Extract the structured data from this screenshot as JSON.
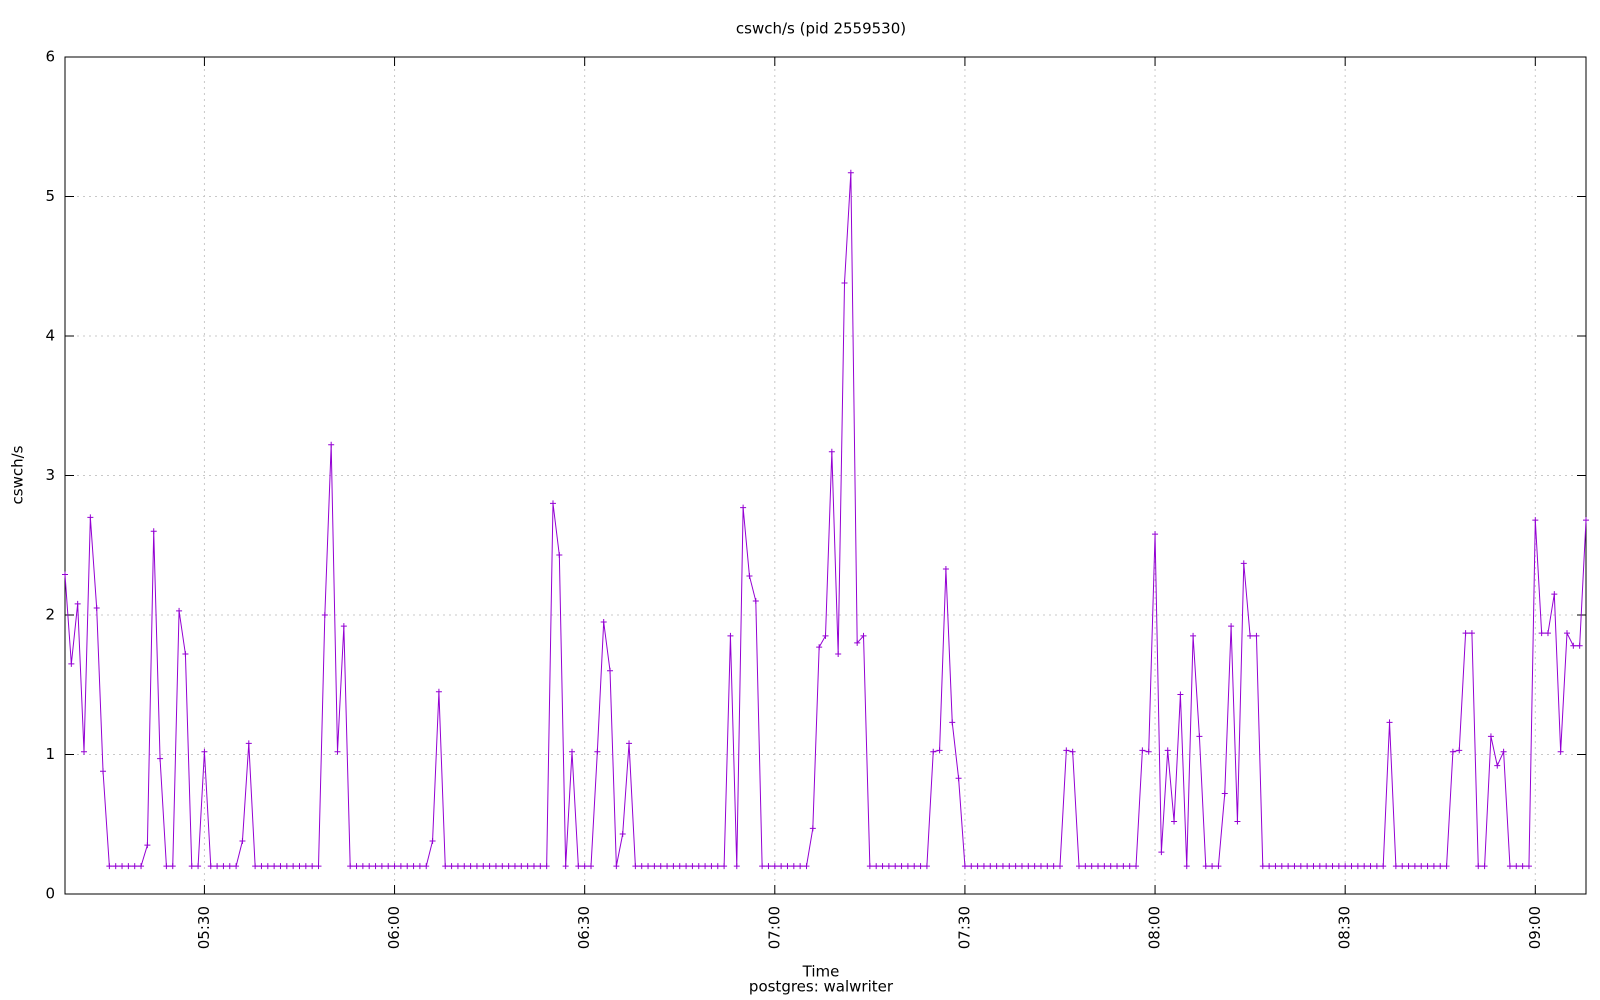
{
  "chart_data": {
    "type": "line",
    "title": "cswch/s (pid 2559530)",
    "x_label": "Time",
    "subtitle": "postgres: walwriter",
    "y_label": "cswch/s",
    "grid": true,
    "x": [
      "05:08",
      "05:09",
      "05:10",
      "05:11",
      "05:12",
      "05:13",
      "05:14",
      "05:15",
      "05:16",
      "05:17",
      "05:18",
      "05:19",
      "05:20",
      "05:21",
      "05:22",
      "05:23",
      "05:24",
      "05:25",
      "05:26",
      "05:27",
      "05:28",
      "05:29",
      "05:30",
      "05:31",
      "05:32",
      "05:33",
      "05:34",
      "05:35",
      "05:36",
      "05:37",
      "05:38",
      "05:39",
      "05:40",
      "05:41",
      "05:42",
      "05:43",
      "05:44",
      "05:45",
      "05:46",
      "05:47",
      "05:48",
      "05:49",
      "05:50",
      "05:51",
      "05:52",
      "05:53",
      "05:54",
      "05:55",
      "05:56",
      "05:57",
      "05:58",
      "05:59",
      "06:00",
      "06:01",
      "06:02",
      "06:03",
      "06:04",
      "06:05",
      "06:06",
      "06:07",
      "06:08",
      "06:09",
      "06:10",
      "06:11",
      "06:12",
      "06:13",
      "06:14",
      "06:15",
      "06:16",
      "06:17",
      "06:18",
      "06:19",
      "06:20",
      "06:21",
      "06:22",
      "06:23",
      "06:24",
      "06:25",
      "06:26",
      "06:27",
      "06:28",
      "06:29",
      "06:30",
      "06:31",
      "06:32",
      "06:33",
      "06:34",
      "06:35",
      "06:36",
      "06:37",
      "06:38",
      "06:39",
      "06:40",
      "06:41",
      "06:42",
      "06:43",
      "06:44",
      "06:45",
      "06:46",
      "06:47",
      "06:48",
      "06:49",
      "06:50",
      "06:51",
      "06:52",
      "06:53",
      "06:54",
      "06:55",
      "06:56",
      "06:57",
      "06:58",
      "06:59",
      "07:00",
      "07:01",
      "07:02",
      "07:03",
      "07:04",
      "07:05",
      "07:06",
      "07:07",
      "07:08",
      "07:09",
      "07:10",
      "07:11",
      "07:12",
      "07:13",
      "07:14",
      "07:15",
      "07:16",
      "07:17",
      "07:18",
      "07:19",
      "07:20",
      "07:21",
      "07:22",
      "07:23",
      "07:24",
      "07:25",
      "07:26",
      "07:27",
      "07:28",
      "07:29",
      "07:30",
      "07:31",
      "07:32",
      "07:33",
      "07:34",
      "07:35",
      "07:36",
      "07:37",
      "07:38",
      "07:39",
      "07:40",
      "07:41",
      "07:42",
      "07:43",
      "07:44",
      "07:45",
      "07:46",
      "07:47",
      "07:48",
      "07:49",
      "07:50",
      "07:51",
      "07:52",
      "07:53",
      "07:54",
      "07:55",
      "07:56",
      "07:57",
      "07:58",
      "07:59",
      "08:00",
      "08:01",
      "08:02",
      "08:03",
      "08:04",
      "08:05",
      "08:06",
      "08:07",
      "08:08",
      "08:09",
      "08:10",
      "08:11",
      "08:12",
      "08:13",
      "08:14",
      "08:15",
      "08:16",
      "08:17",
      "08:18",
      "08:19",
      "08:20",
      "08:21",
      "08:22",
      "08:23",
      "08:24",
      "08:25",
      "08:26",
      "08:27",
      "08:28",
      "08:29",
      "08:30",
      "08:31",
      "08:32",
      "08:33",
      "08:34",
      "08:35",
      "08:36",
      "08:37",
      "08:38",
      "08:39",
      "08:40",
      "08:41",
      "08:42",
      "08:43",
      "08:44",
      "08:45",
      "08:46",
      "08:47",
      "08:48",
      "08:49",
      "08:50",
      "08:51",
      "08:52",
      "08:53",
      "08:54",
      "08:55",
      "08:56",
      "08:57",
      "08:58",
      "08:59",
      "09:00",
      "09:01",
      "09:02",
      "09:03",
      "09:04",
      "09:05",
      "09:06",
      "09:07",
      "09:08"
    ],
    "series": [
      {
        "color": "#9400d3",
        "values": [
          2.29,
          1.65,
          2.08,
          1.02,
          2.7,
          2.05,
          0.88,
          0.2,
          0.2,
          0.2,
          0.2,
          0.2,
          0.2,
          0.35,
          2.6,
          0.97,
          0.2,
          0.2,
          2.03,
          1.72,
          0.2,
          0.2,
          1.02,
          0.2,
          0.2,
          0.2,
          0.2,
          0.2,
          0.38,
          1.08,
          0.2,
          0.2,
          0.2,
          0.2,
          0.2,
          0.2,
          0.2,
          0.2,
          0.2,
          0.2,
          0.2,
          2.0,
          3.22,
          1.02,
          1.92,
          0.2,
          0.2,
          0.2,
          0.2,
          0.2,
          0.2,
          0.2,
          0.2,
          0.2,
          0.2,
          0.2,
          0.2,
          0.2,
          0.38,
          1.45,
          0.2,
          0.2,
          0.2,
          0.2,
          0.2,
          0.2,
          0.2,
          0.2,
          0.2,
          0.2,
          0.2,
          0.2,
          0.2,
          0.2,
          0.2,
          0.2,
          0.2,
          2.8,
          2.43,
          0.2,
          1.02,
          0.2,
          0.2,
          0.2,
          1.02,
          1.95,
          1.6,
          0.2,
          0.43,
          1.08,
          0.2,
          0.2,
          0.2,
          0.2,
          0.2,
          0.2,
          0.2,
          0.2,
          0.2,
          0.2,
          0.2,
          0.2,
          0.2,
          0.2,
          0.2,
          1.85,
          0.2,
          2.77,
          2.28,
          2.1,
          0.2,
          0.2,
          0.2,
          0.2,
          0.2,
          0.2,
          0.2,
          0.2,
          0.47,
          1.77,
          1.85,
          3.17,
          1.72,
          4.38,
          5.17,
          1.8,
          1.85,
          0.2,
          0.2,
          0.2,
          0.2,
          0.2,
          0.2,
          0.2,
          0.2,
          0.2,
          0.2,
          1.02,
          1.03,
          2.33,
          1.23,
          0.83,
          0.2,
          0.2,
          0.2,
          0.2,
          0.2,
          0.2,
          0.2,
          0.2,
          0.2,
          0.2,
          0.2,
          0.2,
          0.2,
          0.2,
          0.2,
          0.2,
          1.03,
          1.02,
          0.2,
          0.2,
          0.2,
          0.2,
          0.2,
          0.2,
          0.2,
          0.2,
          0.2,
          0.2,
          1.03,
          1.02,
          2.58,
          0.3,
          1.03,
          0.52,
          1.43,
          0.2,
          1.85,
          1.13,
          0.2,
          0.2,
          0.2,
          0.72,
          1.92,
          0.52,
          2.37,
          1.85,
          1.85,
          0.2,
          0.2,
          0.2,
          0.2,
          0.2,
          0.2,
          0.2,
          0.2,
          0.2,
          0.2,
          0.2,
          0.2,
          0.2,
          0.2,
          0.2,
          0.2,
          0.2,
          0.2,
          0.2,
          0.2,
          1.23,
          0.2,
          0.2,
          0.2,
          0.2,
          0.2,
          0.2,
          0.2,
          0.2,
          0.2,
          1.02,
          1.03,
          1.87,
          1.87,
          0.2,
          0.2,
          1.13,
          0.92,
          1.02,
          0.2,
          0.2,
          0.2,
          0.2,
          2.68,
          1.87,
          1.87,
          2.15,
          1.02,
          1.87,
          1.78,
          1.78,
          2.68
        ]
      }
    ],
    "xlim": [
      "05:08",
      "09:08"
    ],
    "xticks": [
      "05:30",
      "06:00",
      "06:30",
      "07:00",
      "07:30",
      "08:00",
      "08:30",
      "09:00"
    ],
    "ylim": [
      0,
      6
    ],
    "yticks": [
      0,
      1,
      2,
      3,
      4,
      5,
      6
    ]
  }
}
